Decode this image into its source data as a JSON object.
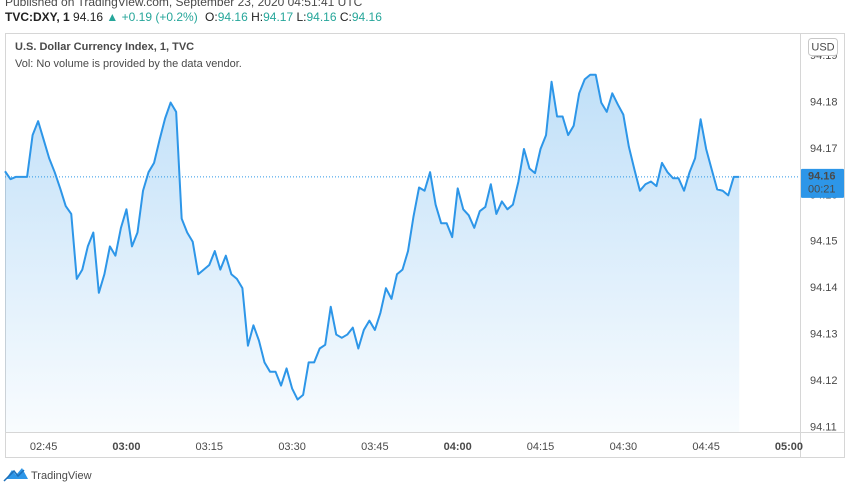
{
  "header": {
    "published": "Published on TradingView.com, September 23, 2020 04:51:41 UTC",
    "symbol": "TVC:DXY, 1",
    "price": "94.16",
    "arrow": "▲",
    "change": "+0.19 (+0.2%)",
    "ohlc": [
      {
        "label": "O:",
        "value": "94.16"
      },
      {
        "label": "H:",
        "value": "94.17"
      },
      {
        "label": "L:",
        "value": "94.16"
      },
      {
        "label": "C:",
        "value": "94.16"
      }
    ]
  },
  "chart_data": {
    "type": "area",
    "legend_title": "U.S. Dollar Currency Index, 1, TVC",
    "volume_note": "Vol: No volume is provided by the data vendor.",
    "currency_button": "USD",
    "last_price_label": "94.16",
    "countdown": "00:21",
    "color": "#2d96e8",
    "grid": false,
    "xlim": [
      "02:38",
      "05:02"
    ],
    "xticks": [
      "02:45",
      "03:00",
      "03:15",
      "03:30",
      "03:45",
      "04:00",
      "04:15",
      "04:30",
      "04:45",
      "05:00"
    ],
    "ylim": [
      94.109,
      94.195
    ],
    "yticks": [
      94.11,
      94.12,
      94.13,
      94.14,
      94.15,
      94.16,
      94.17,
      94.18,
      94.19
    ],
    "x": [
      "02:38",
      "02:39",
      "02:40",
      "02:41",
      "02:42",
      "02:43",
      "02:44",
      "02:45",
      "02:46",
      "02:47",
      "02:48",
      "02:49",
      "02:50",
      "02:51",
      "02:52",
      "02:53",
      "02:54",
      "02:55",
      "02:56",
      "02:57",
      "02:58",
      "02:59",
      "03:00",
      "03:01",
      "03:02",
      "03:03",
      "03:04",
      "03:05",
      "03:06",
      "03:07",
      "03:08",
      "03:09",
      "03:10",
      "03:11",
      "03:12",
      "03:13",
      "03:14",
      "03:15",
      "03:16",
      "03:17",
      "03:18",
      "03:19",
      "03:20",
      "03:21",
      "03:22",
      "03:23",
      "03:24",
      "03:25",
      "03:26",
      "03:27",
      "03:28",
      "03:29",
      "03:30",
      "03:31",
      "03:32",
      "03:33",
      "03:34",
      "03:35",
      "03:36",
      "03:37",
      "03:38",
      "03:39",
      "03:40",
      "03:41",
      "03:42",
      "03:43",
      "03:44",
      "03:45",
      "03:46",
      "03:47",
      "03:48",
      "03:49",
      "03:50",
      "03:51",
      "03:52",
      "03:53",
      "03:54",
      "03:55",
      "03:56",
      "03:57",
      "03:58",
      "03:59",
      "04:00",
      "04:01",
      "04:02",
      "04:03",
      "04:04",
      "04:05",
      "04:06",
      "04:07",
      "04:08",
      "04:09",
      "04:10",
      "04:11",
      "04:12",
      "04:13",
      "04:14",
      "04:15",
      "04:16",
      "04:17",
      "04:18",
      "04:19",
      "04:20",
      "04:21",
      "04:22",
      "04:23",
      "04:24",
      "04:25",
      "04:26",
      "04:27",
      "04:28",
      "04:29",
      "04:30",
      "04:31",
      "04:32",
      "04:33",
      "04:34",
      "04:35",
      "04:36",
      "04:37",
      "04:38",
      "04:39",
      "04:40",
      "04:41",
      "04:42",
      "04:43",
      "04:44",
      "04:45",
      "04:46",
      "04:47",
      "04:48",
      "04:49",
      "04:50",
      "04:51"
    ],
    "values": [
      94.1652,
      94.1635,
      94.164,
      94.164,
      94.164,
      94.173,
      94.176,
      94.172,
      94.168,
      94.165,
      94.1615,
      94.1577,
      94.156,
      94.142,
      94.144,
      94.149,
      94.152,
      94.139,
      94.143,
      94.149,
      94.147,
      94.153,
      94.157,
      94.149,
      94.152,
      94.161,
      94.165,
      94.167,
      94.172,
      94.1766,
      94.18,
      94.178,
      94.155,
      94.152,
      94.15,
      94.143,
      94.144,
      94.145,
      94.148,
      94.144,
      94.147,
      94.143,
      94.142,
      94.14,
      94.1276,
      94.132,
      94.1287,
      94.124,
      94.122,
      94.122,
      94.119,
      94.1227,
      94.1184,
      94.116,
      94.117,
      94.124,
      94.124,
      94.127,
      94.1278,
      94.136,
      94.13,
      94.1293,
      94.13,
      94.1315,
      94.127,
      94.131,
      94.133,
      94.131,
      94.1347,
      94.14,
      94.1377,
      94.143,
      94.144,
      94.148,
      94.1555,
      94.1617,
      94.161,
      94.165,
      94.158,
      94.154,
      94.154,
      94.151,
      94.1615,
      94.157,
      94.1557,
      94.153,
      94.1566,
      94.1575,
      94.1624,
      94.156,
      94.1587,
      94.157,
      94.158,
      94.163,
      94.17,
      94.1658,
      94.1648,
      94.17,
      94.173,
      94.1845,
      94.177,
      94.177,
      94.173,
      94.175,
      94.182,
      94.185,
      94.186,
      94.186,
      94.18,
      94.178,
      94.182,
      94.1796,
      94.1774,
      94.1705,
      94.1656,
      94.161,
      94.1624,
      94.163,
      94.162,
      94.167,
      94.165,
      94.1637,
      94.1637,
      94.161,
      94.165,
      94.168,
      94.1764,
      94.17,
      94.1656,
      94.1613,
      94.161,
      94.16,
      94.164,
      94.164
    ]
  },
  "footer": {
    "brand": "TradingView"
  }
}
